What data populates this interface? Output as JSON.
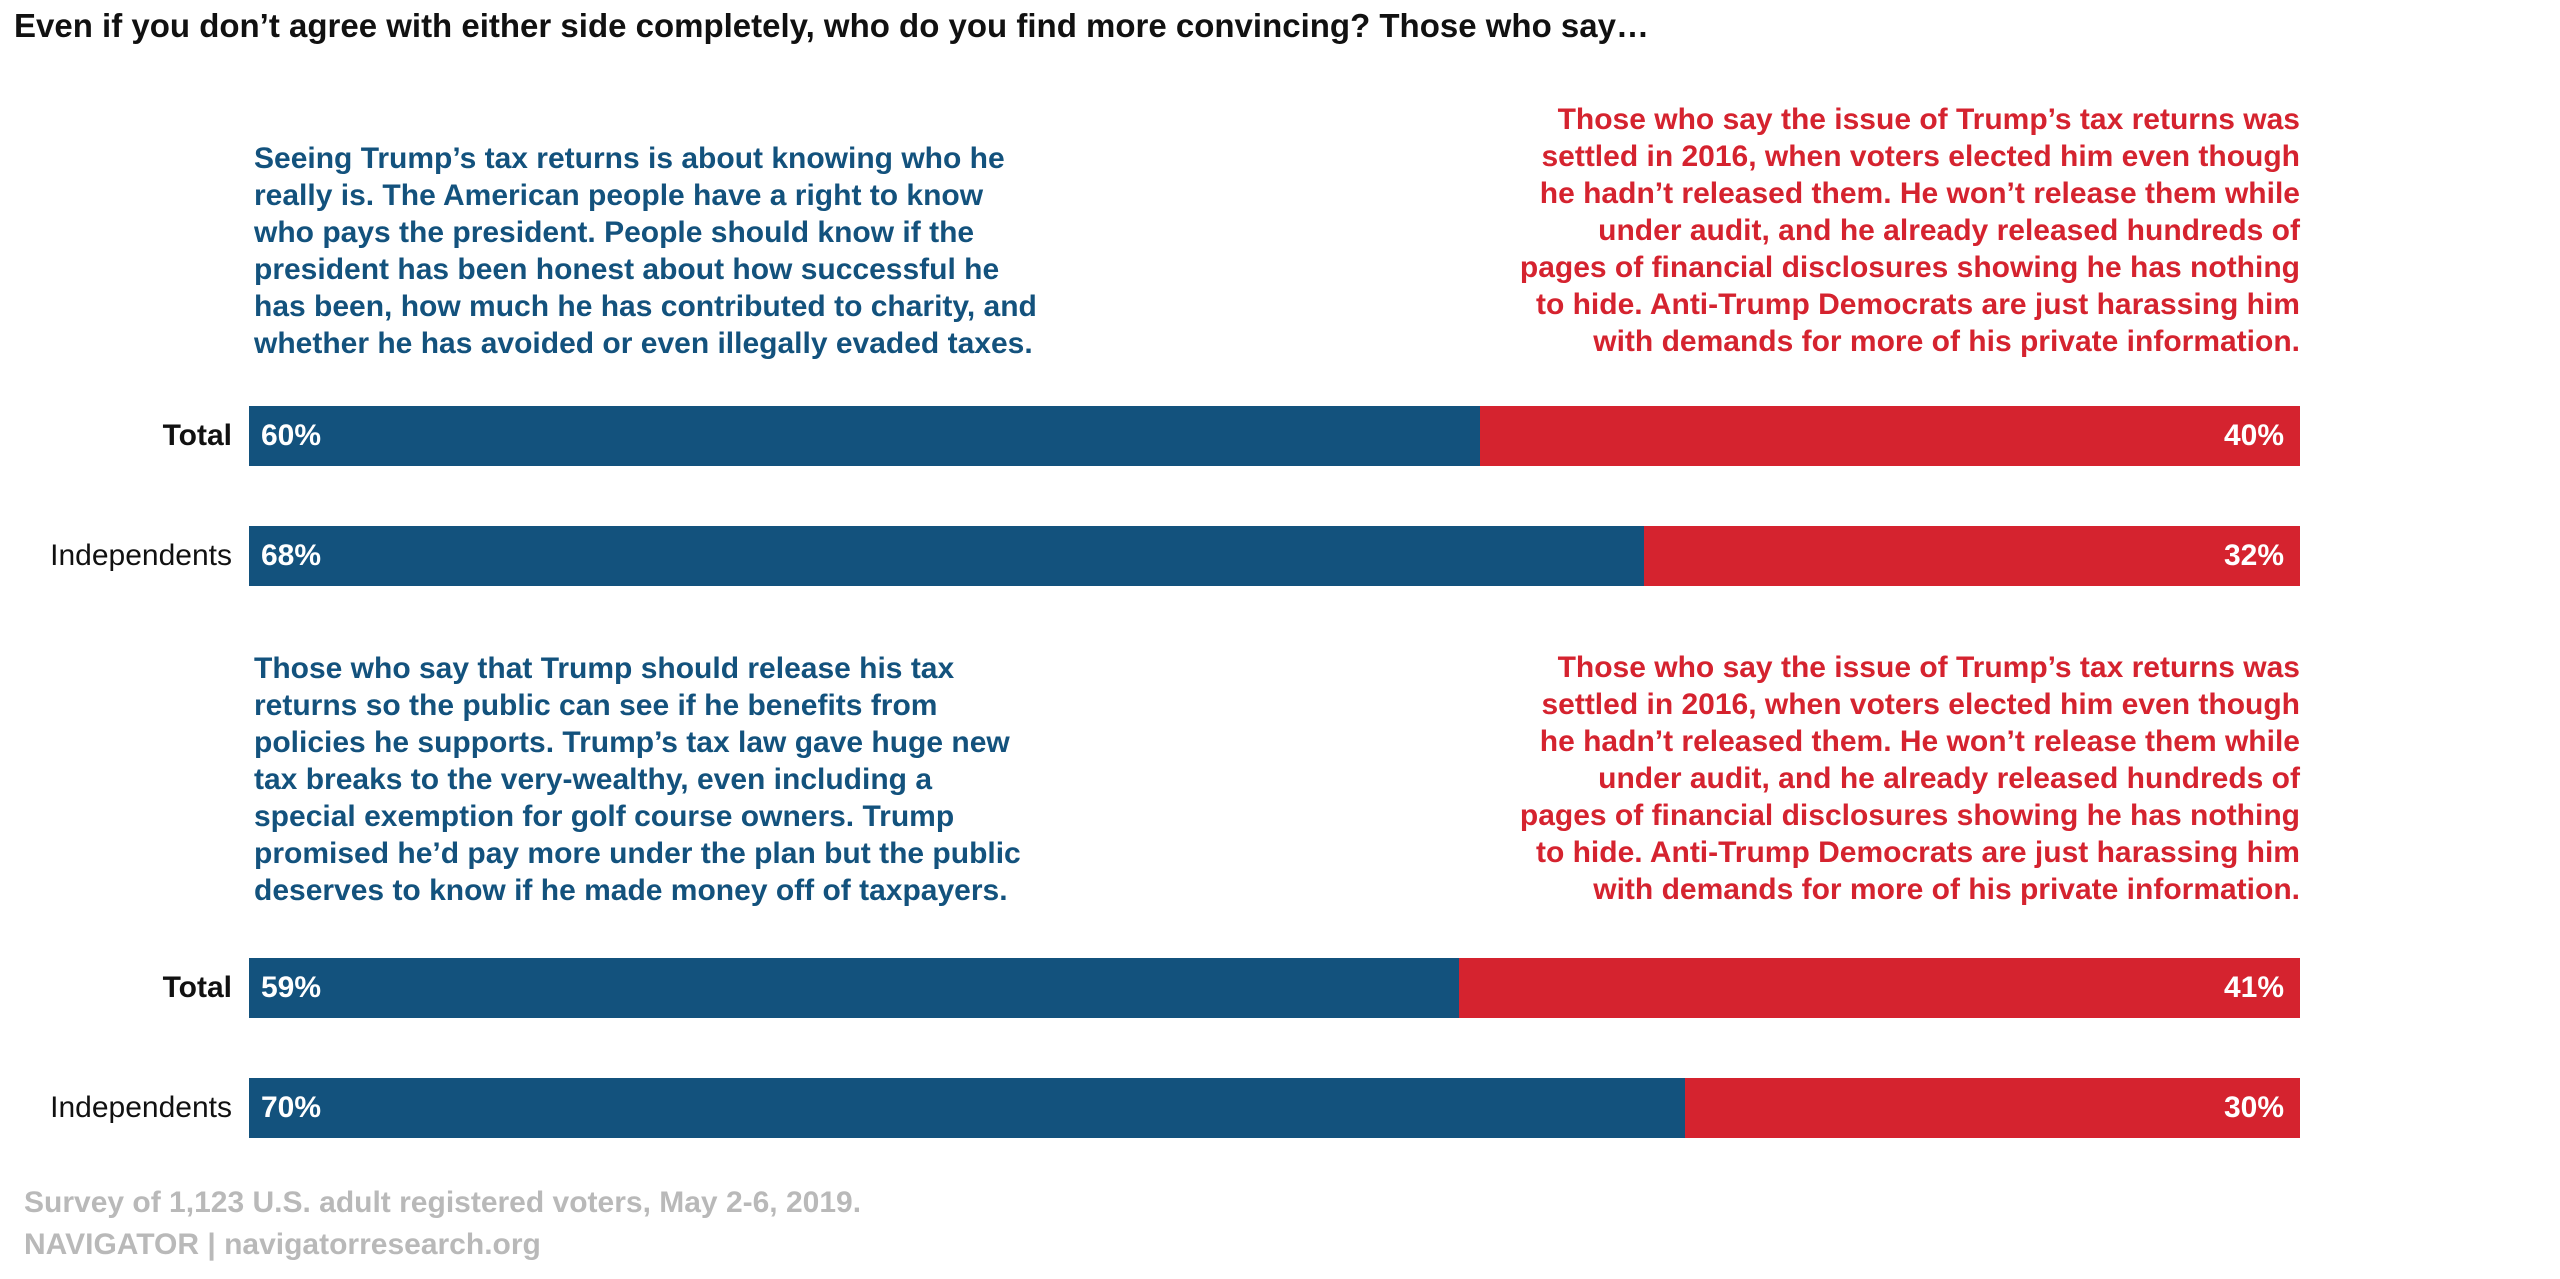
{
  "title": "Even if you don’t agree with either side completely, who do you find more convincing? Those who say…",
  "colors": {
    "agree": "#13527d",
    "disagree": "#d5232f",
    "agree_text": "#13527d",
    "disagree_text": "#d5232f",
    "source_text": "#b9b9b9"
  },
  "chart_data": {
    "type": "bar",
    "orientation": "horizontal",
    "stacked": true,
    "xlim": [
      0,
      100
    ],
    "unit": "%",
    "panels": [
      {
        "left_statement": [
          "Seeing Trump’s tax returns is about knowing who he",
          "really is. The American people have a right to know",
          "who pays the president. People should know if the",
          "president has been honest about how successful he",
          "has been, how much he has contributed to charity, and",
          "whether he has avoided or even illegally evaded taxes."
        ],
        "right_statement": [
          "Those who say the issue of Trump’s tax returns was",
          "settled in 2016, when voters elected him even though",
          "he hadn’t released them. He won’t release them while",
          "under audit, and he already released hundreds of",
          "pages of financial disclosures showing he has nothing",
          "to hide. Anti-Trump Democrats are just harassing him",
          "with demands for more of his private information."
        ],
        "categories": [
          "Total",
          "Independents"
        ],
        "series": [
          {
            "values": [
              60,
              68
            ],
            "labels": [
              "60%",
              "68%"
            ]
          },
          {
            "values": [
              40,
              32
            ],
            "labels": [
              "40%",
              "32%"
            ]
          }
        ]
      },
      {
        "left_statement": [
          "Those who say that Trump should release his tax",
          "returns so the public can see if he benefits from",
          "policies he supports. Trump’s tax law gave huge new",
          "tax breaks to the very-wealthy, even including a",
          "special exemption for golf course owners. Trump",
          "promised he’d pay more under the plan but the public",
          "deserves to know if he made money off of taxpayers."
        ],
        "right_statement": [
          "Those who say the issue of Trump’s tax returns was",
          "settled in 2016, when voters elected him even though",
          "he hadn’t released them. He won’t release them while",
          "under audit, and he already released hundreds of",
          "pages of financial disclosures showing he has nothing",
          "to hide. Anti-Trump Democrats are just harassing him",
          "with demands for more of his private information."
        ],
        "categories": [
          "Total",
          "Independents"
        ],
        "series": [
          {
            "values": [
              59,
              70
            ],
            "labels": [
              "59%",
              "70%"
            ]
          },
          {
            "values": [
              41,
              30
            ],
            "labels": [
              "41%",
              "30%"
            ]
          }
        ]
      }
    ]
  },
  "source": {
    "line1": "Survey of 1,123 U.S. adult registered voters, May 2-6, 2019.",
    "line2": "NAVIGATOR | navigatorresearch.org"
  }
}
